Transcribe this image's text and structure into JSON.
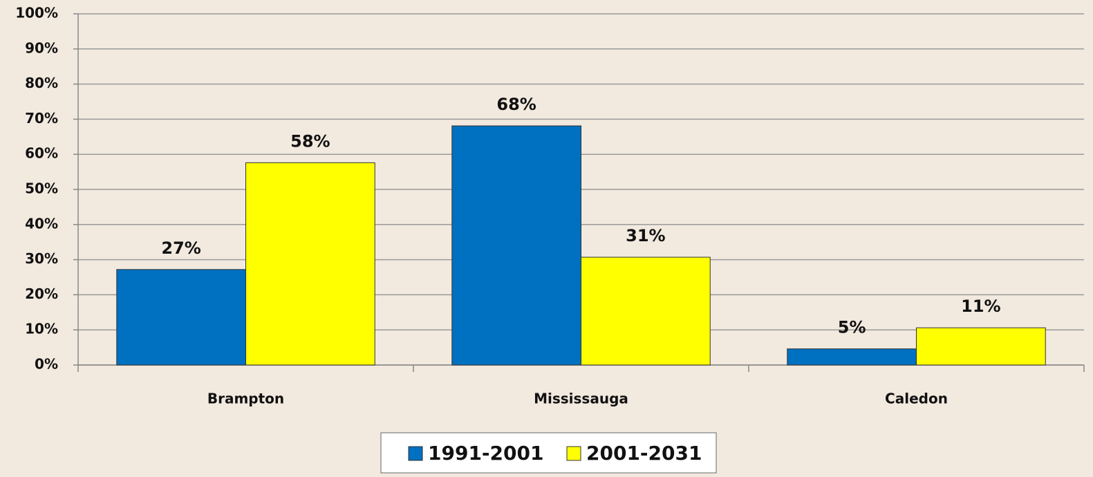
{
  "chart_data": {
    "type": "bar",
    "categories": [
      "Brampton",
      "Mississauga",
      "Caledon"
    ],
    "series": [
      {
        "name": "1991-2001",
        "color": "#0070c0",
        "values": [
          27.2,
          68.1,
          4.6
        ],
        "value_labels": [
          "27%",
          "68%",
          "5%"
        ]
      },
      {
        "name": "2001-2031",
        "color": "#ffff00",
        "values": [
          57.6,
          30.7,
          10.6
        ],
        "value_labels": [
          "58%",
          "31%",
          "11%"
        ]
      }
    ],
    "ylim": [
      0,
      100
    ],
    "yticks": [
      {
        "value": 0,
        "label": "0%"
      },
      {
        "value": 10,
        "label": "10%"
      },
      {
        "value": 20,
        "label": "20%"
      },
      {
        "value": 30,
        "label": "30%"
      },
      {
        "value": 40,
        "label": "40%"
      },
      {
        "value": 50,
        "label": "50%"
      },
      {
        "value": 60,
        "label": "60%"
      },
      {
        "value": 70,
        "label": "70%"
      },
      {
        "value": 80,
        "label": "80%"
      },
      {
        "value": 90,
        "label": "90%"
      },
      {
        "value": 100,
        "label": "100%"
      }
    ],
    "grid": true,
    "legend": "bottom"
  }
}
